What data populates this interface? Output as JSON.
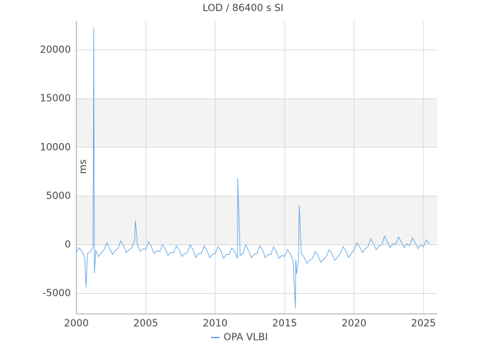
{
  "chart_data": {
    "type": "line",
    "title": "LOD / 86400 s SI",
    "y_label": "ms",
    "x": [
      2000,
      2000.2,
      2000.4,
      2000.6,
      2000.7,
      2000.8,
      2001,
      2001.2,
      2001.25,
      2001.3,
      2001.4,
      2001.6,
      2001.8,
      2002,
      2002.2,
      2002.4,
      2002.6,
      2002.8,
      2003,
      2003.2,
      2003.4,
      2003.6,
      2003.8,
      2004,
      2004.2,
      2004.25,
      2004.4,
      2004.6,
      2004.8,
      2005,
      2005.2,
      2005.4,
      2005.6,
      2005.8,
      2006,
      2006.2,
      2006.4,
      2006.6,
      2006.8,
      2007,
      2007.2,
      2007.4,
      2007.6,
      2007.8,
      2008,
      2008.2,
      2008.4,
      2008.6,
      2008.8,
      2009,
      2009.2,
      2009.4,
      2009.6,
      2009.8,
      2010,
      2010.2,
      2010.4,
      2010.6,
      2010.8,
      2011,
      2011.2,
      2011.4,
      2011.6,
      2011.62,
      2011.8,
      2012,
      2012.2,
      2012.4,
      2012.6,
      2012.8,
      2013,
      2013.2,
      2013.4,
      2013.6,
      2013.8,
      2014,
      2014.2,
      2014.4,
      2014.6,
      2014.8,
      2015,
      2015.2,
      2015.4,
      2015.6,
      2015.78,
      2015.8,
      2015.85,
      2016,
      2016.05,
      2016.2,
      2016.4,
      2016.6,
      2016.8,
      2017,
      2017.2,
      2017.4,
      2017.6,
      2017.8,
      2018,
      2018.2,
      2018.4,
      2018.6,
      2018.8,
      2019,
      2019.2,
      2019.4,
      2019.6,
      2019.8,
      2020,
      2020.2,
      2020.4,
      2020.6,
      2020.8,
      2021,
      2021.2,
      2021.4,
      2021.6,
      2021.8,
      2022,
      2022.2,
      2022.4,
      2022.6,
      2022.8,
      2023,
      2023.2,
      2023.4,
      2023.6,
      2023.8,
      2024,
      2024.2,
      2024.4,
      2024.6,
      2024.8,
      2025,
      2025.2,
      2025.4
    ],
    "series": [
      {
        "name": "OPA VLBI",
        "color": "#6aaae8",
        "values": [
          -800,
          -300,
          -700,
          -1300,
          -4400,
          -900,
          -700,
          -200,
          22300,
          -2900,
          -600,
          -1200,
          -800,
          -500,
          200,
          -400,
          -1000,
          -600,
          -400,
          400,
          -100,
          -800,
          -500,
          -300,
          500,
          2500,
          0,
          -700,
          -400,
          -500,
          300,
          -200,
          -900,
          -600,
          -700,
          0,
          -400,
          -1100,
          -800,
          -800,
          -100,
          -500,
          -1200,
          -900,
          -800,
          0,
          -500,
          -1300,
          -900,
          -900,
          -100,
          -600,
          -1300,
          -1000,
          -900,
          -200,
          -600,
          -1400,
          -1000,
          -1000,
          -300,
          -700,
          -1400,
          6800,
          -1100,
          -900,
          0,
          -600,
          -1300,
          -1000,
          -900,
          -100,
          -500,
          -1300,
          -1000,
          -1000,
          -200,
          -700,
          -1400,
          -1100,
          -1200,
          -500,
          -900,
          -1600,
          -6500,
          -1500,
          -3000,
          -1400,
          4100,
          -900,
          -1300,
          -1900,
          -1600,
          -1400,
          -700,
          -1100,
          -1800,
          -1500,
          -1200,
          -500,
          -900,
          -1600,
          -1300,
          -900,
          -200,
          -600,
          -1300,
          -900,
          -500,
          200,
          -200,
          -800,
          -400,
          -200,
          600,
          100,
          -500,
          -100,
          0,
          900,
          300,
          -300,
          100,
          0,
          800,
          300,
          -300,
          100,
          -100,
          700,
          200,
          -400,
          0,
          -200,
          500,
          100
        ]
      }
    ],
    "xlim": [
      2000,
      2026
    ],
    "ylim": [
      -7100,
      23000
    ],
    "xticks": [
      2000,
      2005,
      2010,
      2015,
      2020,
      2025
    ],
    "yticks": [
      -5000,
      0,
      5000,
      10000,
      15000,
      20000
    ],
    "grid": true
  }
}
